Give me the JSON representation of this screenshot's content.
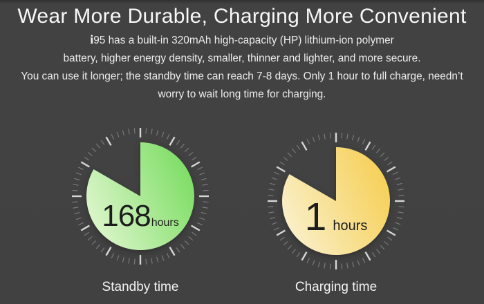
{
  "title": "Wear More Durable, Charging More Convenient",
  "intro": {
    "brand_i": "i",
    "line1_rest": "95 has a built-in 320mAh high-capacity  (HP)  lithium-ion polymer",
    "line2": "battery, higher energy density, smaller, thinner and lighter, and more secure.",
    "line3": "You can use it longer; the standby time can reach 7-8 days. Only 1 hour to full charge, needn’t",
    "line4": "worry to wait long time for charging."
  },
  "chart_data": {
    "type": "pie",
    "description": "Two clock-face pie charts; each pie is filled 300 degrees clockwise from 12 o'clock with a 60-degree wedge missing toward the upper-left. Clock faces have 12 major ticks (every 30 deg) and minor ticks every 5 deg.",
    "clocks": [
      {
        "id": "standby",
        "value": "168",
        "unit": "hours",
        "label": "Standby time",
        "fill_deg": 300,
        "missing_wedge_deg": 60,
        "gradient": [
          "#def6cd",
          "#7bdd62"
        ]
      },
      {
        "id": "charging",
        "value": "1",
        "unit": "hours",
        "label": "Charging time",
        "fill_deg": 300,
        "missing_wedge_deg": 60,
        "gradient": [
          "#faf0cb",
          "#f6cf55"
        ]
      }
    ],
    "layout": {
      "major_ticks": 12,
      "minor_ticks_between_major": 5
    }
  },
  "colors": {
    "background": "#414141",
    "title_text": "#f7f7f7",
    "body_text": "#ededed",
    "number_text": "#1d1d1d",
    "tick_major": "#d6d6d6",
    "tick_minor": "#7f7f7f"
  }
}
